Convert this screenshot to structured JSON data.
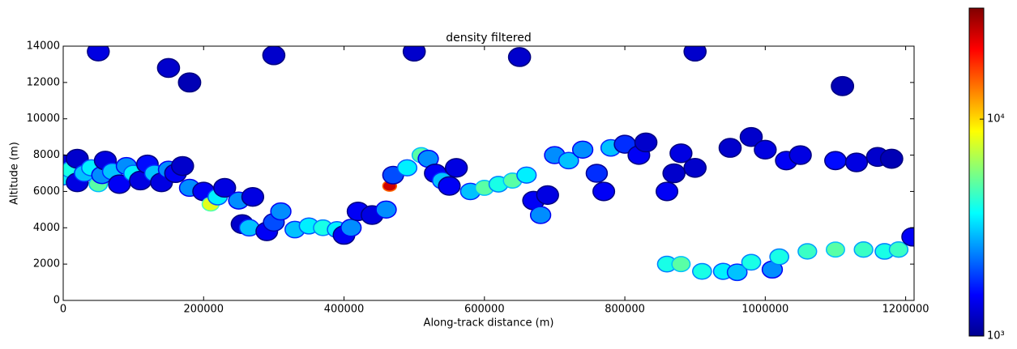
{
  "chart_data": {
    "type": "contour",
    "title": "density filtered",
    "x_label": "Along-track distance (m)",
    "y_label": "Altitude (m)",
    "xlim": [
      0,
      1212000
    ],
    "ylim": [
      0,
      14000
    ],
    "xticks": [
      0,
      200000,
      400000,
      600000,
      800000,
      1000000,
      1200000
    ],
    "yticks": [
      0,
      2000,
      4000,
      6000,
      8000,
      10000,
      12000,
      14000
    ],
    "colormap": "jet",
    "colorbar": {
      "lim": [
        1000,
        32500
      ],
      "log": true,
      "ticks": [
        {
          "value": 1000,
          "label": "10³"
        },
        {
          "value": 10000,
          "label": "10⁴"
        }
      ]
    },
    "x": [
      0,
      0,
      10000,
      20000,
      20000,
      30000,
      40000,
      50000,
      55000,
      60000,
      70000,
      80000,
      90000,
      100000,
      110000,
      120000,
      130000,
      140000,
      150000,
      160000,
      170000,
      180000,
      200000,
      210000,
      220000,
      230000,
      250000,
      270000,
      255000,
      265000,
      290000,
      300000,
      310000,
      330000,
      350000,
      370000,
      390000,
      400000,
      410000,
      420000,
      440000,
      460000,
      465000,
      470000,
      490000,
      510000,
      520000,
      530000,
      540000,
      550000,
      560000,
      580000,
      600000,
      620000,
      640000,
      660000,
      670000,
      680000,
      690000,
      700000,
      720000,
      740000,
      760000,
      770000,
      780000,
      800000,
      820000,
      830000,
      860000,
      870000,
      880000,
      900000,
      950000,
      980000,
      1000000,
      1030000,
      1050000,
      1100000,
      1130000,
      1160000,
      1180000,
      860000,
      880000,
      910000,
      940000,
      960000,
      980000,
      1010000,
      1020000,
      1060000,
      1100000,
      1140000,
      1170000,
      1190000,
      1210000,
      50000,
      150000,
      300000,
      500000,
      650000,
      900000,
      180000,
      1110000
    ],
    "y": [
      7500,
      6800,
      7200,
      6500,
      7800,
      7000,
      7300,
      6400,
      6900,
      7700,
      7100,
      6400,
      7400,
      7000,
      6600,
      7500,
      7000,
      6500,
      7200,
      7000,
      7400,
      6200,
      6000,
      5300,
      5700,
      6200,
      5500,
      5700,
      4200,
      4000,
      3800,
      4300,
      4900,
      3900,
      4100,
      4000,
      3900,
      3600,
      4000,
      4900,
      4700,
      5000,
      6300,
      6900,
      7300,
      8000,
      7800,
      7000,
      6600,
      6300,
      7300,
      6000,
      6200,
      6400,
      6600,
      6900,
      5500,
      4700,
      5800,
      8000,
      7700,
      8300,
      7000,
      6000,
      8400,
      8600,
      8000,
      8700,
      6000,
      7000,
      8100,
      7300,
      8400,
      9000,
      8300,
      7700,
      8000,
      7700,
      7600,
      7900,
      7800,
      2000,
      2000,
      1600,
      1600,
      1550,
      2100,
      1700,
      2400,
      2700,
      2800,
      2800,
      2700,
      2800,
      3500,
      13700,
      12800,
      13500,
      13700,
      13400,
      13700,
      12000,
      11800
    ],
    "values": [
      1400,
      3500,
      4000,
      1400,
      1300,
      3000,
      3500,
      5000,
      2500,
      1400,
      3000,
      1500,
      2500,
      3500,
      1400,
      1600,
      3000,
      1400,
      2500,
      1500,
      1300,
      2500,
      1500,
      8000,
      3500,
      1400,
      2500,
      1400,
      1300,
      3000,
      1500,
      2000,
      2500,
      3000,
      3500,
      4000,
      3500,
      1500,
      2500,
      1500,
      1400,
      2500,
      25000,
      2000,
      3500,
      5000,
      2500,
      1500,
      3000,
      1500,
      1400,
      3000,
      5000,
      4000,
      5000,
      3500,
      1500,
      2500,
      1400,
      2500,
      3000,
      2500,
      1800,
      1500,
      3000,
      1800,
      1500,
      1300,
      1500,
      1300,
      1400,
      1300,
      1300,
      1300,
      1400,
      1500,
      1400,
      1600,
      1400,
      1300,
      1200,
      4000,
      5000,
      4000,
      3500,
      3000,
      4000,
      2500,
      4000,
      4500,
      5000,
      4500,
      4000,
      4500,
      1500,
      1400,
      1300,
      1300,
      1300,
      1300,
      1300,
      1200,
      1200
    ]
  }
}
